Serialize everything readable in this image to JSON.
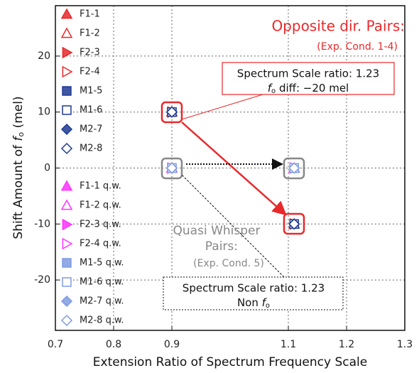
{
  "chart_data": {
    "type": "scatter",
    "x_label": "Extension Ratio of Spectrum Frequency Scale",
    "y_label": {
      "before": "Shift Amount of ",
      "symbol": "f",
      "subscript": "o",
      "after": " (mel)"
    },
    "xlim": [
      0.7,
      1.3
    ],
    "xticks": [
      0.7,
      0.8,
      0.9,
      1.1,
      1.2,
      1.3
    ],
    "ylim": [
      -29,
      29
    ],
    "yticks": [
      -20,
      -10,
      0,
      10,
      20
    ],
    "grid": true,
    "series": [
      {
        "name": "F1-1",
        "color": "#e8292b",
        "marker": "triangle",
        "filled": true,
        "x": [
          0.9,
          1.11
        ],
        "values": [
          10,
          -10
        ]
      },
      {
        "name": "F1-2",
        "color": "#e8292b",
        "marker": "triangle",
        "filled": false,
        "x": [
          0.9,
          1.11
        ],
        "values": [
          10,
          -10
        ]
      },
      {
        "name": "F2-3",
        "color": "#e8292b",
        "marker": "triangle-right",
        "filled": true,
        "x": [
          0.9,
          1.11
        ],
        "values": [
          10,
          -10
        ]
      },
      {
        "name": "F2-4",
        "color": "#e8292b",
        "marker": "triangle-right",
        "filled": false,
        "x": [
          0.9,
          1.11
        ],
        "values": [
          10,
          -10
        ]
      },
      {
        "name": "M1-5",
        "color": "#1f3a93",
        "marker": "square",
        "filled": true,
        "x": [
          0.9,
          1.11
        ],
        "values": [
          10,
          -10
        ]
      },
      {
        "name": "M1-6",
        "color": "#1f3a93",
        "marker": "square",
        "filled": false,
        "x": [
          0.9,
          1.11
        ],
        "values": [
          10,
          -10
        ]
      },
      {
        "name": "M2-7",
        "color": "#1f3a93",
        "marker": "diamond",
        "filled": true,
        "x": [
          0.9,
          1.11
        ],
        "values": [
          10,
          -10
        ]
      },
      {
        "name": "M2-8",
        "color": "#1f3a93",
        "marker": "diamond",
        "filled": false,
        "x": [
          0.9,
          1.11
        ],
        "values": [
          10,
          -10
        ]
      },
      {
        "name": "F1-1 q.w.",
        "color": "#ff33ff",
        "marker": "triangle",
        "filled": true,
        "x": [
          0.9,
          1.11
        ],
        "values": [
          0,
          0
        ]
      },
      {
        "name": "F1-2 q.w.",
        "color": "#ff33ff",
        "marker": "triangle",
        "filled": false,
        "x": [
          0.9,
          1.11
        ],
        "values": [
          0,
          0
        ]
      },
      {
        "name": "F2-3 q.w.",
        "color": "#ff33ff",
        "marker": "triangle-right",
        "filled": true,
        "x": [
          0.9,
          1.11
        ],
        "values": [
          0,
          0
        ]
      },
      {
        "name": "F2-4 q.w.",
        "color": "#ff33ff",
        "marker": "triangle-right",
        "filled": false,
        "x": [
          0.9,
          1.11
        ],
        "values": [
          0,
          0
        ]
      },
      {
        "name": "M1-5 q.w.",
        "color": "#7f9be0",
        "marker": "square",
        "filled": true,
        "x": [
          0.9,
          1.11
        ],
        "values": [
          0,
          0
        ]
      },
      {
        "name": "M1-6 q.w.",
        "color": "#7f9be0",
        "marker": "square",
        "filled": false,
        "x": [
          0.9,
          1.11
        ],
        "values": [
          0,
          0
        ]
      },
      {
        "name": "M2-7 q.w.",
        "color": "#7f9be0",
        "marker": "diamond",
        "filled": true,
        "x": [
          0.9,
          1.11
        ],
        "values": [
          0,
          0
        ]
      },
      {
        "name": "M2-8 q.w.",
        "color": "#7f9be0",
        "marker": "diamond",
        "filled": false,
        "x": [
          0.9,
          1.11
        ],
        "values": [
          0,
          0
        ]
      }
    ],
    "annotations": {
      "opposite_title": "Opposite dir. Pairs:",
      "opposite_cond": "(Exp. Cond. 1-4)",
      "box1_line1": "Spectrum Scale ratio: 1.23",
      "box1_line2": {
        "symbol": "f",
        "subscript": "o",
        "after": " diff: −20 mel"
      },
      "qw_line1": "Quasi Whisper",
      "qw_line2": "Pairs:",
      "qw_cond": "(Exp. Cond. 5)",
      "box2_line1": "Spectrum Scale ratio: 1.23",
      "box2_line2": {
        "before": "Non ",
        "symbol": "f",
        "subscript": "o"
      }
    }
  }
}
